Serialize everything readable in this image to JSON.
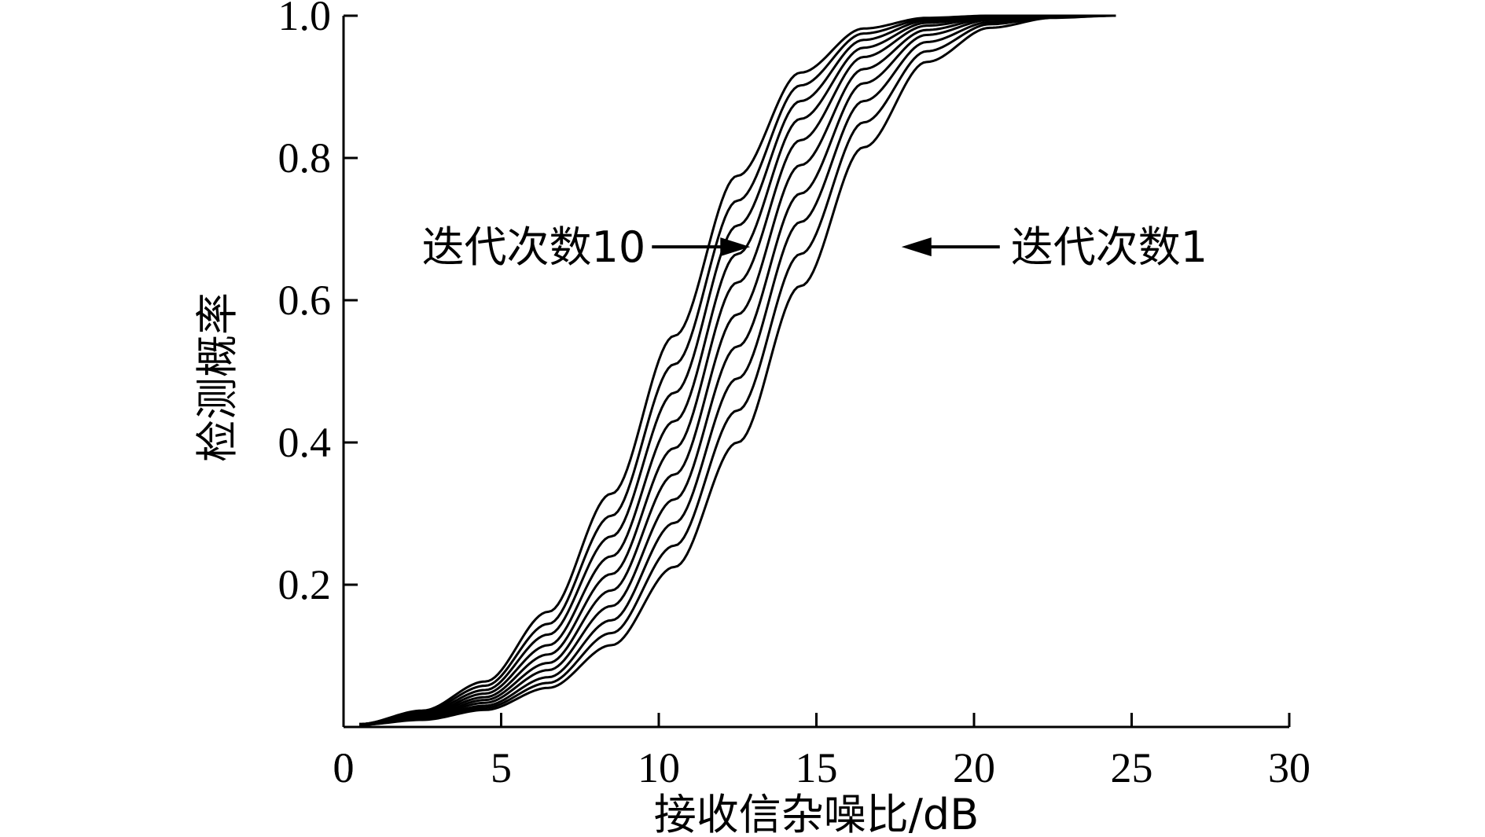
{
  "chart_data": {
    "type": "line",
    "title": "",
    "xlabel": "接收信杂噪比/dB",
    "ylabel": "检测概率",
    "xlim": [
      0,
      30
    ],
    "ylim": [
      0,
      1.0
    ],
    "x_ticks": [
      "0",
      "5",
      "10",
      "15",
      "20",
      "25",
      "30"
    ],
    "y_ticks": [
      "0.2",
      "0.4",
      "0.6",
      "0.8",
      "1.0"
    ],
    "grid": false,
    "legend": "none",
    "line_color": "#000000",
    "x": [
      0.5,
      2.5,
      4.5,
      6.5,
      8.5,
      10.5,
      12.5,
      14.5,
      16.5,
      18.5,
      20.5,
      22.5,
      24.5
    ],
    "series": [
      {
        "values": [
          0.003,
          0.01,
          0.024,
          0.055,
          0.115,
          0.225,
          0.4,
          0.62,
          0.815,
          0.935,
          0.983,
          0.997,
          1.0
        ]
      },
      {
        "values": [
          0.003,
          0.011,
          0.027,
          0.062,
          0.132,
          0.255,
          0.445,
          0.665,
          0.85,
          0.95,
          0.988,
          0.998,
          1.0
        ]
      },
      {
        "values": [
          0.003,
          0.012,
          0.03,
          0.07,
          0.15,
          0.287,
          0.49,
          0.71,
          0.88,
          0.963,
          0.991,
          0.999,
          1.0
        ]
      },
      {
        "values": [
          0.003,
          0.013,
          0.034,
          0.08,
          0.17,
          0.32,
          0.535,
          0.75,
          0.905,
          0.973,
          0.994,
          0.999,
          1.0
        ]
      },
      {
        "values": [
          0.003,
          0.014,
          0.038,
          0.09,
          0.192,
          0.355,
          0.58,
          0.79,
          0.925,
          0.98,
          0.996,
          1.0,
          1.0
        ]
      },
      {
        "values": [
          0.004,
          0.016,
          0.042,
          0.102,
          0.215,
          0.392,
          0.625,
          0.825,
          0.942,
          0.986,
          0.997,
          1.0,
          1.0
        ]
      },
      {
        "values": [
          0.004,
          0.017,
          0.047,
          0.115,
          0.24,
          0.43,
          0.665,
          0.855,
          0.955,
          0.99,
          0.998,
          1.0,
          1.0
        ]
      },
      {
        "values": [
          0.004,
          0.019,
          0.052,
          0.13,
          0.268,
          0.47,
          0.705,
          0.88,
          0.966,
          0.993,
          0.999,
          1.0,
          1.0
        ]
      },
      {
        "values": [
          0.004,
          0.021,
          0.058,
          0.145,
          0.297,
          0.51,
          0.74,
          0.902,
          0.975,
          0.995,
          1.0,
          1.0,
          1.0
        ]
      },
      {
        "values": [
          0.004,
          0.023,
          0.064,
          0.162,
          0.328,
          0.55,
          0.775,
          0.92,
          0.982,
          0.997,
          1.0,
          1.0,
          1.0
        ]
      }
    ],
    "annotations": [
      {
        "text": "迭代次数10",
        "x": 12.9,
        "y": 0.675,
        "side": "left"
      },
      {
        "text": "迭代次数1",
        "x": 17.7,
        "y": 0.675,
        "side": "right"
      }
    ]
  }
}
